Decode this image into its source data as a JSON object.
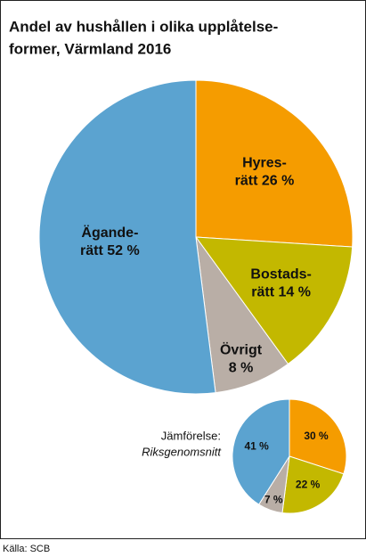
{
  "chart_data": [
    {
      "type": "pie",
      "title": [
        "Andel av hushållen i olika upplåtelse-",
        "former, Värmland 2016"
      ],
      "categories": [
        [
          "Hyres-",
          "rätt"
        ],
        [
          "Bostads-",
          "rätt"
        ],
        [
          "Övrigt"
        ],
        [
          "Ägande-",
          "rätt"
        ]
      ],
      "values": [
        26,
        14,
        8,
        52
      ],
      "value_labels": [
        "26 %",
        "14 %",
        "8 %",
        "52 %"
      ],
      "colors": [
        "#f59c00",
        "#c3b800",
        "#b9aea6",
        "#5ba3d0"
      ]
    },
    {
      "type": "pie",
      "title": [
        "Jämförelse:",
        "Riksgenomsnitt"
      ],
      "values": [
        30,
        22,
        7,
        41
      ],
      "value_labels": [
        "30 %",
        "22 %",
        "7 %",
        "41 %"
      ],
      "colors": [
        "#f59c00",
        "#c3b800",
        "#b9aea6",
        "#5ba3d0"
      ]
    }
  ],
  "source": "Källa: SCB"
}
